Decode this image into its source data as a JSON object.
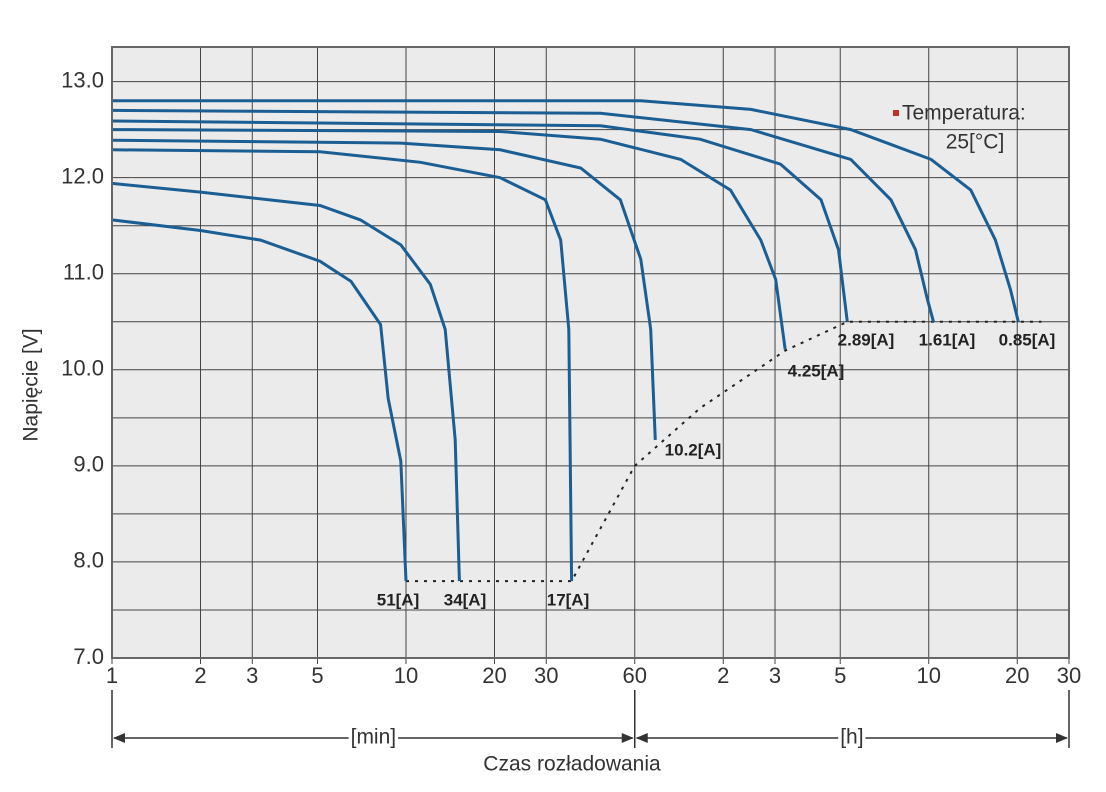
{
  "chart_data": {
    "type": "line",
    "xscale": "log",
    "grid": true,
    "color": "#1b5e94",
    "xlabel": "Czas rozładowania",
    "ylabel": "Napięcie [V]",
    "annotation": [
      "Temperatura:",
      "25[°C]"
    ],
    "xlim": [
      1,
      1800
    ],
    "ylim": [
      7,
      13.36
    ],
    "xticks": [
      1,
      2,
      3,
      5,
      10,
      20,
      30,
      60,
      {
        "value": 120,
        "label": "2"
      },
      {
        "value": 180,
        "label": "3"
      },
      {
        "value": 300,
        "label": "5"
      },
      {
        "value": 600,
        "label": "10"
      },
      {
        "value": 1200,
        "label": "20"
      },
      {
        "value": 1800,
        "label": "30"
      }
    ],
    "yticks": [
      {
        "value": 7,
        "label": "7.0"
      },
      {
        "value": 8,
        "label": "8.0"
      },
      {
        "value": 9,
        "label": "9.0"
      },
      {
        "value": 10,
        "label": "10.0"
      },
      {
        "value": 11,
        "label": "11.0"
      },
      {
        "value": 12,
        "label": "12.0"
      },
      {
        "value": 13,
        "label": "13.0"
      }
    ],
    "yminor": [
      7.5,
      8.5,
      9.5,
      10.5,
      11.5,
      12.5
    ],
    "unit_spans": [
      {
        "label": "[min]",
        "from": 1,
        "to": 60
      },
      {
        "label": "[h]",
        "from": 60,
        "to": 1800
      }
    ],
    "series": [
      {
        "name": "51[A]",
        "x": [
          1,
          2,
          3.2,
          5.1,
          6.5,
          8.2,
          8.7,
          9.6,
          10
        ],
        "values": [
          11.56,
          11.45,
          11.35,
          11.13,
          10.92,
          10.47,
          9.7,
          9.05,
          7.8
        ]
      },
      {
        "name": "34[A]",
        "x": [
          1,
          2,
          5.1,
          7,
          9.6,
          12.1,
          13.6,
          14.7,
          15.2
        ],
        "values": [
          11.94,
          11.85,
          11.71,
          11.56,
          11.3,
          10.89,
          10.42,
          9.27,
          7.8
        ]
      },
      {
        "name": "17[A]",
        "x": [
          1,
          5.1,
          11.2,
          20.9,
          29.8,
          33.6,
          35.8,
          36.6
        ],
        "values": [
          12.29,
          12.27,
          12.16,
          12.0,
          11.77,
          11.35,
          10.42,
          7.8
        ]
      },
      {
        "name": "10.2[A]",
        "x": [
          1,
          9.6,
          20.9,
          39.3,
          53.6,
          62.9,
          68,
          70.5
        ],
        "values": [
          12.39,
          12.36,
          12.29,
          12.1,
          11.77,
          11.15,
          10.42,
          9.27
        ]
      },
      {
        "name": "4.25[A]",
        "x": [
          1,
          20.9,
          45.9,
          86,
          127,
          161,
          181,
          195
        ],
        "values": [
          12.5,
          12.48,
          12.4,
          12.19,
          11.87,
          11.35,
          10.94,
          10.21
        ]
      },
      {
        "name": "2.89[A]",
        "x": [
          1,
          45.9,
          100,
          188,
          258,
          296,
          317
        ],
        "values": [
          12.59,
          12.54,
          12.4,
          12.14,
          11.77,
          11.25,
          10.5
        ]
      },
      {
        "name": "1.61[A]",
        "x": [
          1,
          45.9,
          149,
          326,
          446,
          541,
          594,
          623
        ],
        "values": [
          12.7,
          12.67,
          12.5,
          12.19,
          11.77,
          11.25,
          10.73,
          10.5
        ]
      },
      {
        "name": "0.85[A]",
        "x": [
          1,
          62.9,
          149,
          326,
          611,
          834,
          1011,
          1139,
          1210
        ],
        "values": [
          12.8,
          12.8,
          12.71,
          12.5,
          12.19,
          11.87,
          11.35,
          10.83,
          10.5
        ]
      }
    ],
    "cutoff_line": {
      "x": [
        10,
        36.6,
        60,
        100,
        195,
        317,
        1450
      ],
      "values": [
        7.8,
        7.8,
        9.0,
        9.6,
        10.2,
        10.5,
        10.5
      ]
    }
  }
}
